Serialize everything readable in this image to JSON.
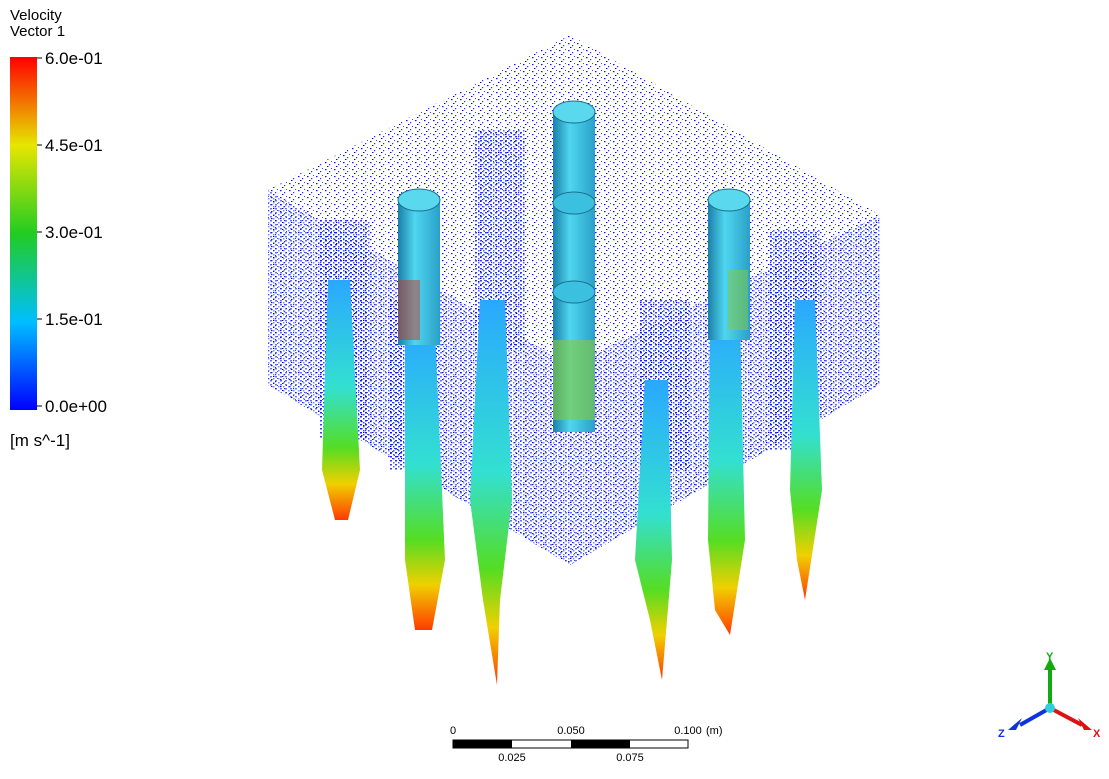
{
  "legend": {
    "title": "Velocity",
    "subtitle": "Vector 1",
    "labels": [
      "6.0e-01",
      "4.5e-01",
      "3.0e-01",
      "1.5e-01",
      "0.0e+00"
    ],
    "units": "[m s^-1]"
  },
  "scale_bar": {
    "top_labels": [
      "0",
      "0.050",
      "0.100"
    ],
    "unit": "(m)",
    "bottom_labels": [
      "0.025",
      "0.075"
    ]
  },
  "axes": {
    "y": "Y",
    "z": "Z",
    "x": "X"
  }
}
